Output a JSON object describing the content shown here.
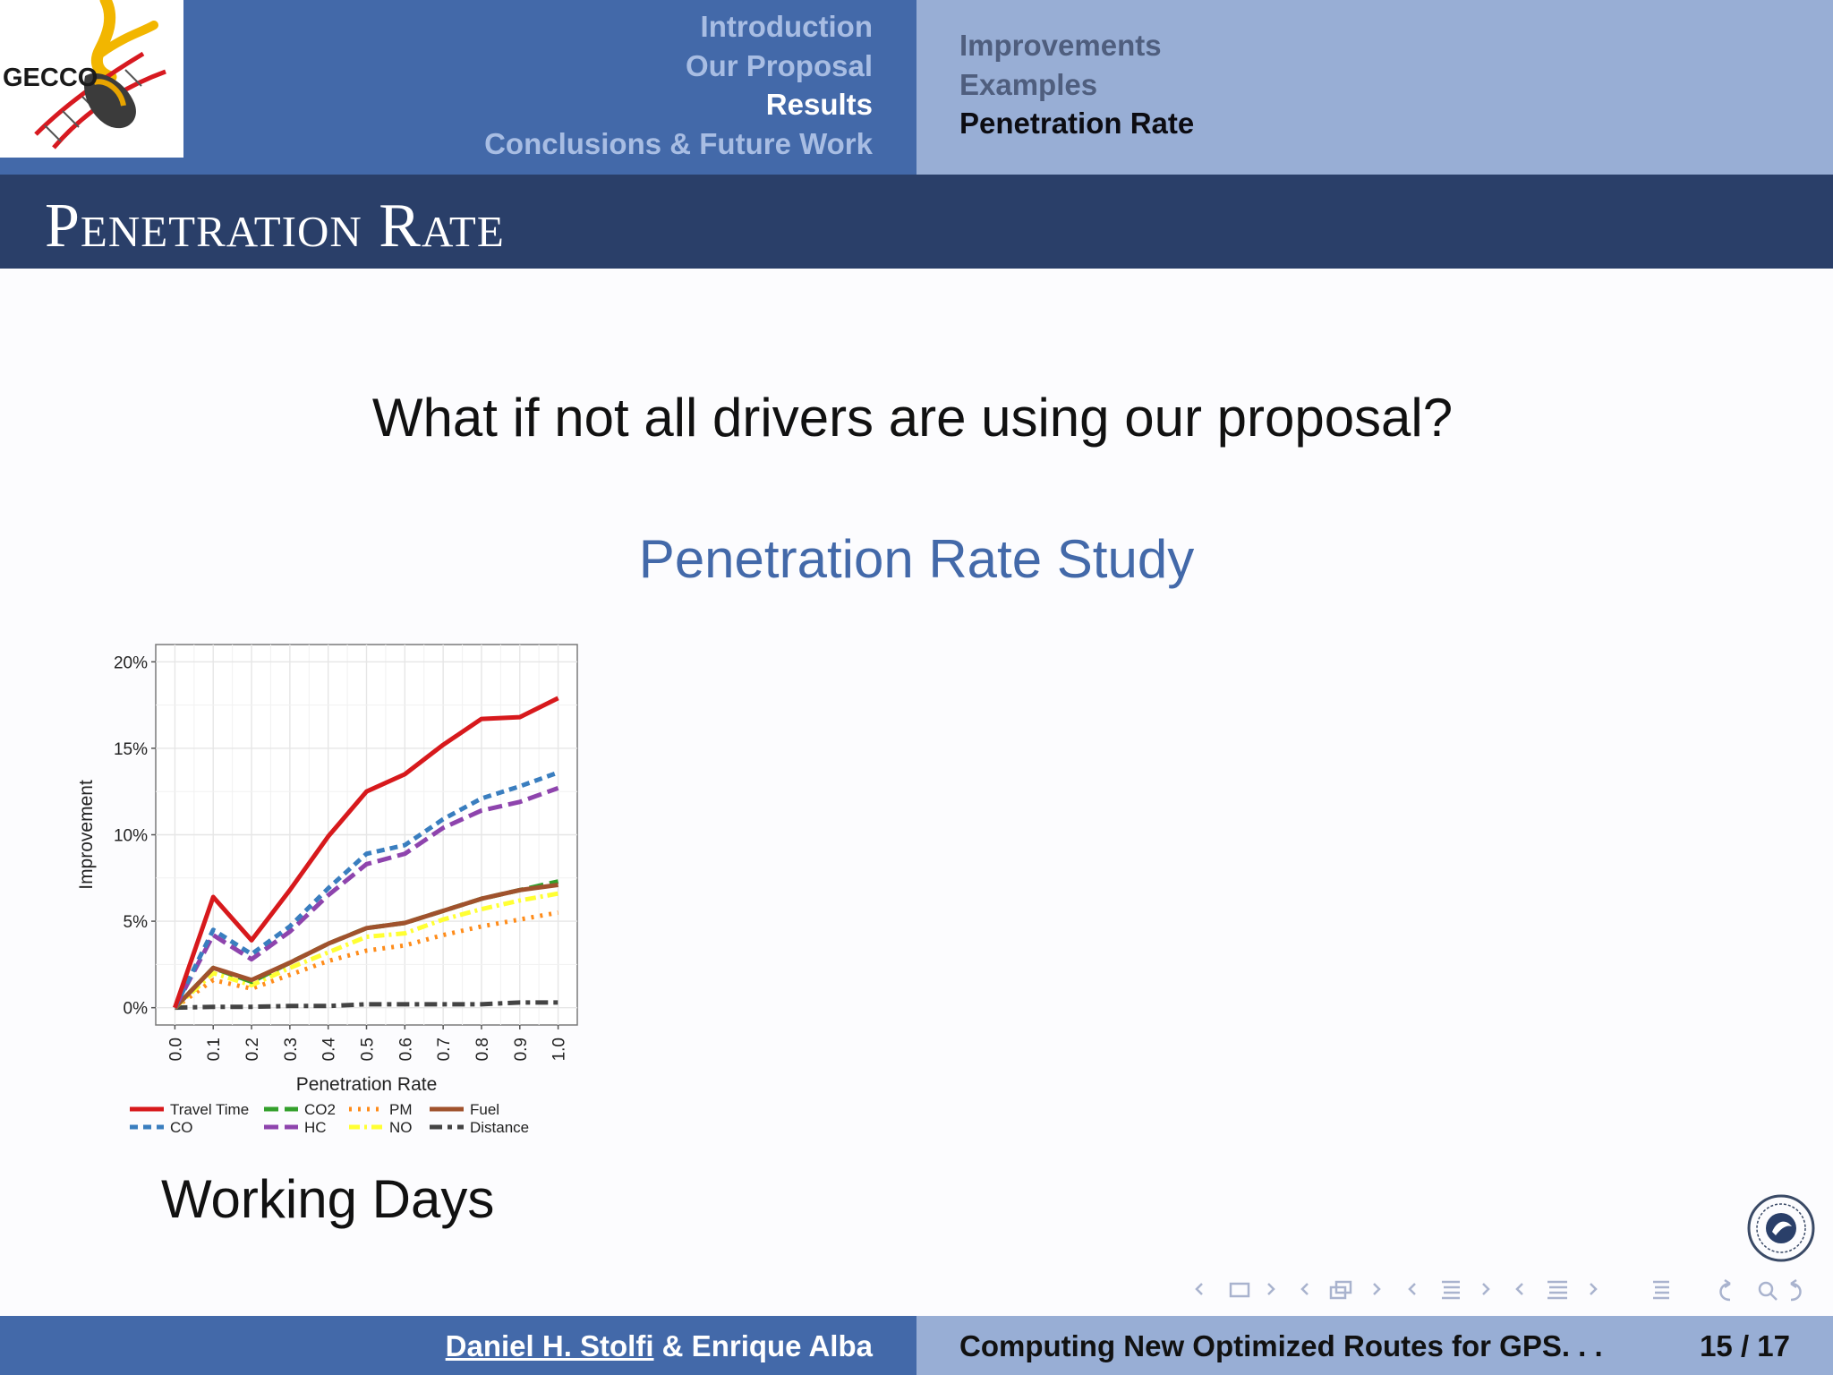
{
  "header": {
    "logo_text": "GECCO",
    "sections": [
      {
        "label": "Introduction",
        "active": false
      },
      {
        "label": "Our Proposal",
        "active": false
      },
      {
        "label": "Results",
        "active": true
      },
      {
        "label": "Conclusions & Future Work",
        "active": false
      }
    ],
    "subsections": [
      {
        "label": "Improvements",
        "active": false
      },
      {
        "label": "Examples",
        "active": false
      },
      {
        "label": "Penetration Rate",
        "active": true
      }
    ]
  },
  "slide": {
    "title": "Penetration Rate",
    "question": "What if not all drivers are using our proposal?",
    "study_title": "Penetration Rate Study",
    "caption": "Working Days"
  },
  "footer": {
    "author_main": "Daniel H. Stolfi",
    "author_rest": " & Enrique Alba",
    "talk_title": "Computing New Optimized Routes for GPS. . .",
    "page": "15 / 17"
  },
  "colors": {
    "header_blue": "#4369a9",
    "header_light": "#98aed5",
    "title_bar": "#2a3f69",
    "study_title": "#4369a9"
  },
  "chart_data": {
    "type": "line",
    "xlabel": "Penetration Rate",
    "ylabel": "Improvement",
    "x": [
      0.0,
      0.1,
      0.2,
      0.3,
      0.4,
      0.5,
      0.6,
      0.7,
      0.8,
      0.9,
      1.0
    ],
    "x_tick_labels": [
      "0.0",
      "0.1",
      "0.2",
      "0.3",
      "0.4",
      "0.5",
      "0.6",
      "0.7",
      "0.8",
      "0.9",
      "1.0"
    ],
    "y_ticks": [
      0,
      5,
      10,
      15,
      20
    ],
    "y_tick_labels": [
      "0%",
      "5%",
      "10%",
      "15%",
      "20%"
    ],
    "ylim": [
      -1,
      21
    ],
    "xlim": [
      -0.05,
      1.05
    ],
    "grid": true,
    "legend_position": "bottom",
    "series": [
      {
        "name": "Travel Time",
        "color": "#d7191c",
        "dash": "solid",
        "values": [
          0,
          6.4,
          3.9,
          6.8,
          9.9,
          12.5,
          13.5,
          15.2,
          16.7,
          16.8,
          17.9
        ]
      },
      {
        "name": "CO",
        "color": "#3a7ebf",
        "dash": "dashed",
        "values": [
          0,
          4.5,
          3.1,
          4.7,
          6.9,
          8.9,
          9.4,
          10.9,
          12.1,
          12.8,
          13.6
        ]
      },
      {
        "name": "CO2",
        "color": "#33a02c",
        "dash": "longdash",
        "values": [
          0,
          2.3,
          1.5,
          2.6,
          3.7,
          4.6,
          4.9,
          5.6,
          6.3,
          6.8,
          7.3
        ]
      },
      {
        "name": "HC",
        "color": "#8e44ad",
        "dash": "longdash",
        "values": [
          0,
          4.2,
          2.8,
          4.4,
          6.5,
          8.3,
          8.9,
          10.4,
          11.4,
          11.9,
          12.7
        ]
      },
      {
        "name": "PM",
        "color": "#ff8c1a",
        "dash": "dotted",
        "values": [
          0,
          1.6,
          1.1,
          1.9,
          2.7,
          3.3,
          3.6,
          4.2,
          4.7,
          5.1,
          5.5
        ]
      },
      {
        "name": "NO",
        "color": "#ffff33",
        "dash": "dashdot",
        "values": [
          0,
          2.0,
          1.3,
          2.3,
          3.2,
          4.1,
          4.3,
          5.1,
          5.7,
          6.2,
          6.6
        ]
      },
      {
        "name": "Fuel",
        "color": "#a0522d",
        "dash": "solid",
        "values": [
          0,
          2.3,
          1.6,
          2.6,
          3.7,
          4.6,
          4.9,
          5.6,
          6.3,
          6.8,
          7.1
        ]
      },
      {
        "name": "Distance",
        "color": "#444444",
        "dash": "twodash",
        "values": [
          0,
          0.05,
          0.05,
          0.1,
          0.1,
          0.2,
          0.2,
          0.2,
          0.2,
          0.3,
          0.3
        ]
      }
    ]
  }
}
